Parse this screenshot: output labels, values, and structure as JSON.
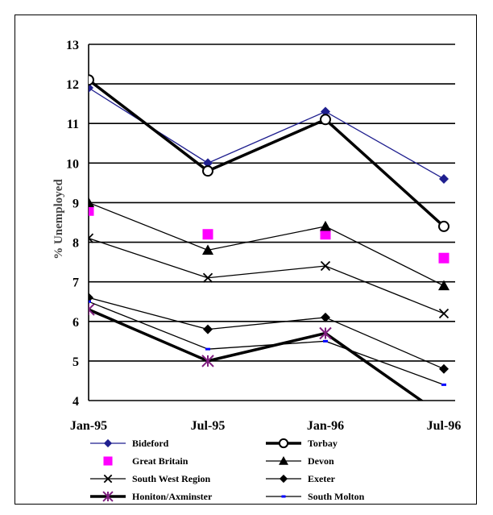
{
  "chart_data": {
    "type": "line",
    "title": "",
    "xlabel": "",
    "ylabel": "% Unemployed",
    "categories": [
      "Jan-95",
      "Jul-95",
      "Jan-96",
      "Jul-96"
    ],
    "ylim": [
      4,
      13
    ],
    "yticks": [
      4,
      5,
      6,
      7,
      8,
      9,
      10,
      11,
      12,
      13
    ],
    "grid": "horizontal",
    "legend_position": "bottom",
    "series": [
      {
        "name": "Bideford",
        "values": [
          11.9,
          10.0,
          11.3,
          9.6
        ],
        "color": "#1f1f8f",
        "marker": "diamond",
        "lineWidth": 1.3
      },
      {
        "name": "Torbay",
        "values": [
          12.1,
          9.8,
          11.1,
          8.4
        ],
        "color": "#000000",
        "marker": "circle",
        "lineWidth": 3.5
      },
      {
        "name": "Great Britain",
        "values": [
          8.8,
          8.2,
          8.2,
          7.6
        ],
        "color": "#ff00ff",
        "marker": "square",
        "line": false
      },
      {
        "name": "Devon",
        "values": [
          9.0,
          7.8,
          8.4,
          6.9
        ],
        "color": "#000000",
        "marker": "triangle",
        "lineWidth": 1.3
      },
      {
        "name": "South West Region",
        "values": [
          8.1,
          7.1,
          7.4,
          6.2
        ],
        "color": "#000000",
        "marker": "x",
        "lineWidth": 1.3
      },
      {
        "name": "Exeter",
        "values": [
          6.6,
          5.8,
          6.1,
          4.8
        ],
        "color": "#000000",
        "marker": "diamond",
        "lineWidth": 1.3
      },
      {
        "name": "Honiton/Axminster",
        "values": [
          6.3,
          5.0,
          5.7,
          3.6
        ],
        "color": "#000000",
        "marker": "star",
        "markerColor": "#7f1f7f",
        "lineWidth": 3.5
      },
      {
        "name": "South Molton",
        "values": [
          6.5,
          5.3,
          5.5,
          4.4
        ],
        "color": "#000000",
        "marker": "dash",
        "markerColor": "#0000ff",
        "lineWidth": 1.3
      }
    ]
  }
}
